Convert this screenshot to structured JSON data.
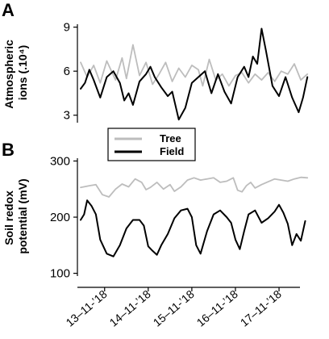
{
  "colors": {
    "tree": "#bdbdbd",
    "field": "#000000"
  },
  "chart_data": [
    {
      "panel": "A",
      "type": "line",
      "ylabel_lines": [
        "Atmospheric",
        "ions (.10⁴)"
      ],
      "ylim": [
        2.6,
        9.2
      ],
      "yticks": [
        3,
        6,
        9
      ],
      "xlim": [
        0,
        5.4
      ],
      "series": [
        {
          "name": "Tree",
          "color": "#bdbdbd",
          "x": [
            0.0,
            0.15,
            0.3,
            0.45,
            0.6,
            0.8,
            0.95,
            1.05,
            1.2,
            1.35,
            1.5,
            1.65,
            1.8,
            1.95,
            2.1,
            2.25,
            2.4,
            2.55,
            2.7,
            2.8,
            2.95,
            3.1,
            3.25,
            3.4,
            3.55,
            3.7,
            3.85,
            4.0,
            4.15,
            4.3,
            4.45,
            4.6,
            4.75,
            4.9,
            5.05,
            5.2
          ],
          "y": [
            6.6,
            5.6,
            6.4,
            5.2,
            6.7,
            5.4,
            6.9,
            5.5,
            7.8,
            5.7,
            6.6,
            5.1,
            5.8,
            6.6,
            5.3,
            6.2,
            5.6,
            6.4,
            6.1,
            5.0,
            6.8,
            5.4,
            5.8,
            5.0,
            5.7,
            5.9,
            5.2,
            5.8,
            5.4,
            5.9,
            5.3,
            6.0,
            5.8,
            6.5,
            5.4,
            5.8
          ]
        },
        {
          "name": "Field",
          "color": "#000000",
          "x": [
            0.0,
            0.1,
            0.2,
            0.3,
            0.45,
            0.6,
            0.75,
            0.9,
            1.0,
            1.1,
            1.2,
            1.35,
            1.5,
            1.6,
            1.7,
            1.85,
            2.0,
            2.1,
            2.25,
            2.4,
            2.55,
            2.7,
            2.85,
            3.0,
            3.15,
            3.3,
            3.45,
            3.6,
            3.75,
            3.85,
            3.95,
            4.05,
            4.15,
            4.25,
            4.4,
            4.55,
            4.7,
            4.85,
            5.0,
            5.1,
            5.2
          ],
          "y": [
            4.8,
            5.2,
            6.1,
            5.4,
            4.2,
            5.6,
            6.0,
            5.2,
            4.0,
            4.5,
            3.7,
            5.3,
            5.8,
            6.3,
            5.6,
            4.9,
            4.3,
            4.6,
            2.7,
            3.5,
            5.2,
            5.6,
            6.0,
            4.5,
            5.8,
            4.6,
            3.8,
            5.6,
            6.3,
            5.6,
            7.0,
            6.5,
            8.9,
            7.4,
            5.0,
            4.3,
            5.6,
            4.2,
            3.2,
            4.2,
            5.6
          ]
        }
      ]
    },
    {
      "panel": "B",
      "type": "line",
      "ylabel_lines": [
        "Soil redox",
        "potential (mV)"
      ],
      "ylim": [
        98,
        305
      ],
      "yticks": [
        100,
        200,
        300
      ],
      "xlim": [
        0,
        5.4
      ],
      "xtick_labels": [
        "13–11-’18",
        "14–11-’18",
        "15–11-’18",
        "16–11-’18",
        "17–11-’18"
      ],
      "xticks": [
        0.55,
        1.55,
        2.55,
        3.55,
        4.55
      ],
      "series": [
        {
          "name": "Tree",
          "color": "#bdbdbd",
          "x": [
            0.0,
            0.2,
            0.35,
            0.5,
            0.65,
            0.8,
            0.95,
            1.1,
            1.25,
            1.4,
            1.5,
            1.6,
            1.75,
            1.9,
            2.05,
            2.15,
            2.3,
            2.45,
            2.6,
            2.75,
            2.9,
            3.05,
            3.2,
            3.35,
            3.5,
            3.6,
            3.7,
            3.8,
            3.9,
            4.0,
            4.15,
            4.3,
            4.45,
            4.6,
            4.75,
            4.9,
            5.05,
            5.2
          ],
          "y": [
            253,
            256,
            258,
            240,
            236,
            250,
            259,
            254,
            268,
            262,
            249,
            253,
            262,
            250,
            258,
            246,
            254,
            266,
            270,
            266,
            268,
            270,
            262,
            264,
            270,
            248,
            245,
            256,
            262,
            252,
            258,
            263,
            268,
            266,
            264,
            268,
            271,
            270
          ]
        },
        {
          "name": "Field",
          "color": "#000000",
          "x": [
            0.0,
            0.08,
            0.15,
            0.25,
            0.35,
            0.45,
            0.6,
            0.75,
            0.9,
            1.05,
            1.2,
            1.35,
            1.45,
            1.55,
            1.65,
            1.75,
            1.85,
            2.0,
            2.15,
            2.3,
            2.45,
            2.55,
            2.65,
            2.75,
            2.9,
            3.05,
            3.2,
            3.35,
            3.45,
            3.55,
            3.65,
            3.75,
            3.85,
            4.0,
            4.15,
            4.3,
            4.45,
            4.55,
            4.65,
            4.75,
            4.85,
            4.95,
            5.05,
            5.15
          ],
          "y": [
            195,
            205,
            230,
            220,
            205,
            160,
            135,
            130,
            150,
            180,
            195,
            195,
            185,
            148,
            140,
            133,
            150,
            170,
            198,
            212,
            215,
            200,
            150,
            135,
            175,
            205,
            212,
            200,
            190,
            160,
            143,
            175,
            205,
            212,
            190,
            198,
            210,
            222,
            208,
            188,
            150,
            170,
            158,
            193
          ]
        }
      ]
    }
  ],
  "legend": {
    "items": [
      {
        "label": "Tree"
      },
      {
        "label": "Field"
      }
    ]
  }
}
